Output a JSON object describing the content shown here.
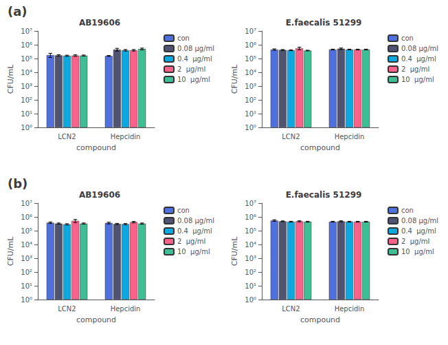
{
  "chart_data": [
    {
      "type": "bar",
      "title": "AB19606",
      "annotation": "(a)",
      "categories": [
        "LCN2",
        "Hepcidin"
      ],
      "series": [
        {
          "name": "con",
          "values": [
            180000.0,
            155000.0
          ],
          "errors": [
            60000.0,
            10000.0
          ]
        },
        {
          "name": "0.08 μg/ml",
          "values": [
            170000.0,
            450000.0
          ],
          "errors": [
            20000.0,
            100000.0
          ]
        },
        {
          "name": "0.4  μg/ml",
          "values": [
            160000.0,
            400000.0
          ],
          "errors": [
            15000.0,
            50000.0
          ]
        },
        {
          "name": "2  μg/ml",
          "values": [
            165000.0,
            400000.0
          ],
          "errors": [
            20000.0,
            50000.0
          ]
        },
        {
          "name": "10  μg/ml",
          "values": [
            165000.0,
            500000.0
          ],
          "errors": [
            15000.0,
            70000.0
          ]
        }
      ],
      "xlabel": "compound",
      "ylabel": "CFU/mL",
      "log": "y",
      "ylim": [
        1,
        10000000.0
      ],
      "yticks": [
        {
          "value": 1,
          "label": "10⁰"
        },
        {
          "value": 10,
          "label": "10¹"
        },
        {
          "value": 100,
          "label": "10²"
        },
        {
          "value": 1000,
          "label": "10³"
        },
        {
          "value": 10000,
          "label": "10⁴"
        },
        {
          "value": 100000,
          "label": "10⁵"
        },
        {
          "value": 1000000,
          "label": "10⁶"
        },
        {
          "value": 10000000,
          "label": "10⁷"
        }
      ],
      "grid": false,
      "legend": "upper right"
    },
    {
      "type": "bar",
      "title": "E.faecalis 51299",
      "categories": [
        "LCN2",
        "Hepcidin"
      ],
      "series": [
        {
          "name": "con",
          "values": [
            450000.0,
            450000.0
          ],
          "errors": [
            50000.0,
            30000.0
          ]
        },
        {
          "name": "0.08 μg/ml",
          "values": [
            420000.0,
            520000.0
          ],
          "errors": [
            30000.0,
            60000.0
          ]
        },
        {
          "name": "0.4  μg/ml",
          "values": [
            400000.0,
            450000.0
          ],
          "errors": [
            30000.0,
            30000.0
          ]
        },
        {
          "name": "2  μg/ml",
          "values": [
            550000.0,
            450000.0
          ],
          "errors": [
            120000.0,
            30000.0
          ]
        },
        {
          "name": "10  μg/ml",
          "values": [
            380000.0,
            450000.0
          ],
          "errors": [
            20000.0,
            30000.0
          ]
        }
      ],
      "xlabel": "compound",
      "ylabel": "CFU/mL",
      "log": "y",
      "ylim": [
        1,
        10000000.0
      ],
      "yticks": [
        {
          "value": 1,
          "label": "10⁰"
        },
        {
          "value": 10,
          "label": "10¹"
        },
        {
          "value": 100,
          "label": "10²"
        },
        {
          "value": 1000,
          "label": "10³"
        },
        {
          "value": 10000,
          "label": "10⁴"
        },
        {
          "value": 100000,
          "label": "10⁵"
        },
        {
          "value": 1000000,
          "label": "10⁶"
        },
        {
          "value": 10000000,
          "label": "10⁷"
        }
      ],
      "grid": false,
      "legend": "upper right"
    },
    {
      "type": "bar",
      "title": "AB19606",
      "annotation": "(b)",
      "categories": [
        "LCN2",
        "Hepcidin"
      ],
      "series": [
        {
          "name": "con",
          "values": [
            380000.0,
            360000.0
          ],
          "errors": [
            50000.0,
            50000.0
          ]
        },
        {
          "name": "0.08 μg/ml",
          "values": [
            330000.0,
            310000.0
          ],
          "errors": [
            30000.0,
            30000.0
          ]
        },
        {
          "name": "0.4  μg/ml",
          "values": [
            290000.0,
            300000.0
          ],
          "errors": [
            30000.0,
            30000.0
          ]
        },
        {
          "name": "2  μg/ml",
          "values": [
            520000.0,
            420000.0
          ],
          "errors": [
            130000.0,
            50000.0
          ]
        },
        {
          "name": "10  μg/ml",
          "values": [
            330000.0,
            330000.0
          ],
          "errors": [
            30000.0,
            30000.0
          ]
        }
      ],
      "xlabel": "compound",
      "ylabel": "CFU/mL",
      "log": "y",
      "ylim": [
        1,
        10000000.0
      ],
      "yticks": [
        {
          "value": 1,
          "label": "10⁰"
        },
        {
          "value": 10,
          "label": "10¹"
        },
        {
          "value": 100,
          "label": "10²"
        },
        {
          "value": 1000,
          "label": "10³"
        },
        {
          "value": 10000,
          "label": "10⁴"
        },
        {
          "value": 100000,
          "label": "10⁵"
        },
        {
          "value": 1000000,
          "label": "10⁶"
        },
        {
          "value": 10000000,
          "label": "10⁷"
        }
      ],
      "grid": false,
      "legend": "upper right"
    },
    {
      "type": "bar",
      "title": "E.faecalis 51299",
      "categories": [
        "LCN2",
        "Hepcidin"
      ],
      "series": [
        {
          "name": "con",
          "values": [
            550000.0,
            450000.0
          ],
          "errors": [
            70000.0,
            30000.0
          ]
        },
        {
          "name": "0.08 μg/ml",
          "values": [
            480000.0,
            480000.0
          ],
          "errors": [
            30000.0,
            40000.0
          ]
        },
        {
          "name": "0.4  μg/ml",
          "values": [
            450000.0,
            450000.0
          ],
          "errors": [
            30000.0,
            30000.0
          ]
        },
        {
          "name": "2  μg/ml",
          "values": [
            480000.0,
            450000.0
          ],
          "errors": [
            40000.0,
            30000.0
          ]
        },
        {
          "name": "10  μg/ml",
          "values": [
            450000.0,
            450000.0
          ],
          "errors": [
            30000.0,
            30000.0
          ]
        }
      ],
      "xlabel": "compound",
      "ylabel": "CFU/mL",
      "log": "y",
      "ylim": [
        1,
        10000000.0
      ],
      "yticks": [
        {
          "value": 1,
          "label": "10⁰"
        },
        {
          "value": 10,
          "label": "10¹"
        },
        {
          "value": 100,
          "label": "10²"
        },
        {
          "value": 1000,
          "label": "10³"
        },
        {
          "value": 10000,
          "label": "10⁴"
        },
        {
          "value": 100000,
          "label": "10⁵"
        },
        {
          "value": 1000000,
          "label": "10⁶"
        },
        {
          "value": 10000000,
          "label": "10⁷"
        }
      ],
      "grid": false,
      "legend": "upper right"
    }
  ]
}
